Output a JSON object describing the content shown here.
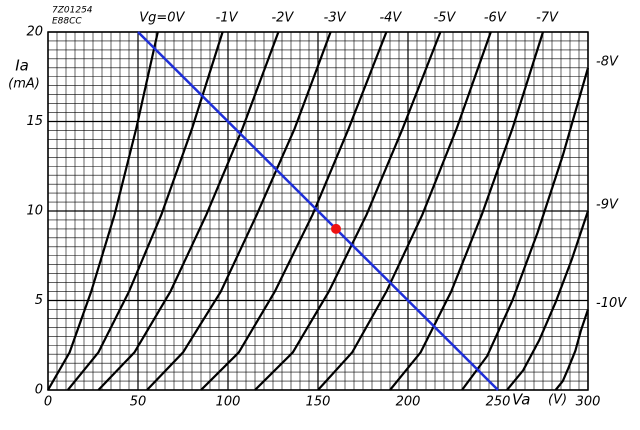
{
  "chart_data": {
    "type": "line",
    "annotations": [
      "7Z01254",
      "E88CC"
    ],
    "x_label": "Va",
    "x_unit": "(V)",
    "y_label": "Ia",
    "y_unit": "(mA)",
    "xlim": [
      0,
      300
    ],
    "ylim": [
      0,
      20
    ],
    "xticks": [
      0,
      50,
      100,
      150,
      200,
      250,
      300
    ],
    "yticks": [
      0,
      5,
      10,
      15,
      20
    ],
    "grid": true,
    "series": [
      {
        "name": "Vg=0V",
        "color": "#000000",
        "x": [
          0,
          12,
          24,
          37,
          49,
          61
        ],
        "values": [
          0,
          2.1,
          5.5,
          9.8,
          14.6,
          20
        ]
      },
      {
        "name": "-1V",
        "color": "#000000",
        "x": [
          11,
          28,
          45,
          63,
          80,
          97
        ],
        "values": [
          0,
          2.1,
          5.5,
          9.8,
          14.6,
          20
        ]
      },
      {
        "name": "-2V",
        "color": "#000000",
        "x": [
          28,
          48,
          68,
          88,
          108,
          128
        ],
        "values": [
          0,
          2.1,
          5.5,
          9.8,
          14.6,
          20
        ]
      },
      {
        "name": "-3V",
        "color": "#000000",
        "x": [
          55,
          75,
          96,
          116,
          137,
          157
        ],
        "values": [
          0,
          2.1,
          5.5,
          9.8,
          14.6,
          20
        ]
      },
      {
        "name": "-4V",
        "color": "#000000",
        "x": [
          85,
          106,
          126,
          147,
          167,
          188
        ],
        "values": [
          0,
          2.1,
          5.5,
          9.8,
          14.6,
          20
        ]
      },
      {
        "name": "-5V",
        "color": "#000000",
        "x": [
          115,
          136,
          156,
          177,
          197,
          218
        ],
        "values": [
          0,
          2.1,
          5.5,
          9.8,
          14.6,
          20
        ]
      },
      {
        "name": "-6V",
        "color": "#000000",
        "x": [
          150,
          169,
          188,
          208,
          227,
          246
        ],
        "values": [
          0,
          2.1,
          5.5,
          9.8,
          14.6,
          20
        ]
      },
      {
        "name": "-7V",
        "color": "#000000",
        "x": [
          190,
          207,
          224,
          241,
          258,
          275
        ],
        "values": [
          0,
          2.1,
          5.5,
          9.8,
          14.6,
          20
        ]
      },
      {
        "name": "-8V",
        "color": "#000000",
        "x": [
          230,
          244,
          258,
          272,
          286,
          300
        ],
        "values": [
          0,
          1.9,
          5,
          8.8,
          13.1,
          18
        ]
      },
      {
        "name": "-9V",
        "color": "#000000",
        "x": [
          255,
          264,
          273,
          282,
          291,
          300
        ],
        "values": [
          0,
          1.1,
          2.8,
          4.9,
          7.3,
          10
        ]
      },
      {
        "name": "-10V",
        "color": "#000000",
        "x": [
          282,
          286,
          289,
          293,
          296,
          300
        ],
        "values": [
          0,
          0.5,
          1.2,
          2.2,
          3.3,
          4.5
        ]
      }
    ],
    "load_line": {
      "color": "#1f2fd8",
      "x": [
        50,
        250
      ],
      "values": [
        20,
        0
      ]
    },
    "operating_point": {
      "color": "#ee1111",
      "x": 160,
      "y": 9
    }
  }
}
